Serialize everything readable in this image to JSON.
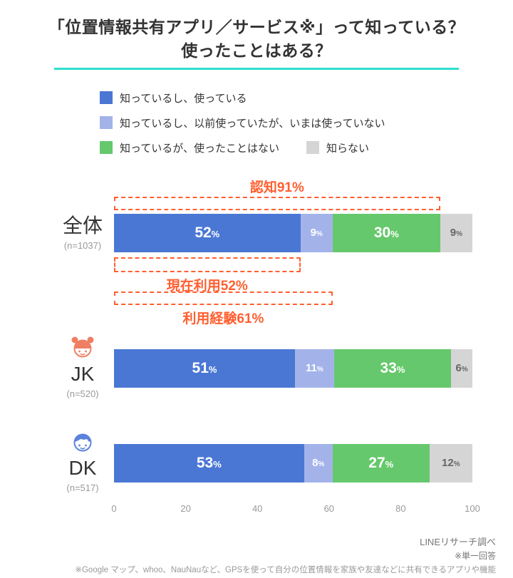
{
  "title": {
    "line1": "「位置情報共有アプリ／サービス※」って知っている？",
    "line2": "使ったことはある？"
  },
  "colors": {
    "accent_line": "#2FDFCE",
    "blue": "#4A77D4",
    "periwinkle": "#A3B3EA",
    "green": "#66C86C",
    "gray": "#D5D5D5",
    "annotation": "#FF5F30",
    "jk_icon": "#EF7F63",
    "dk_icon": "#5C83DC"
  },
  "legend": [
    {
      "label": "知っているし、使っている",
      "color_key": "blue"
    },
    {
      "label": "知っているし、以前使っていたが、いまは使っていない",
      "color_key": "periwinkle"
    },
    {
      "label": "知っているが、使ったことはない",
      "color_key": "green"
    },
    {
      "label": "知らない",
      "color_key": "gray"
    }
  ],
  "chart_data": {
    "type": "bar",
    "orientation": "horizontal",
    "stacked": true,
    "categories": [
      "全体",
      "JK",
      "DK"
    ],
    "category_sublabels": [
      "(n=1037)",
      "(n=520)",
      "(n=517)"
    ],
    "series": [
      {
        "name": "知っているし、使っている",
        "color": "#4A77D4",
        "values": [
          52,
          51,
          53
        ]
      },
      {
        "name": "知っているし、以前使っていたが、いまは使っていない",
        "color": "#A3B3EA",
        "values": [
          9,
          11,
          8
        ]
      },
      {
        "name": "知っているが、使ったことはない",
        "color": "#66C86C",
        "values": [
          30,
          33,
          27
        ]
      },
      {
        "name": "知らない",
        "color": "#D5D5D5",
        "values": [
          9,
          6,
          12
        ]
      }
    ],
    "x_ticks": [
      0,
      20,
      40,
      60,
      80,
      100
    ],
    "xlim": [
      0,
      100
    ],
    "value_suffix": "%",
    "annotations": [
      {
        "label": "認知91%",
        "span": 91,
        "position": "above-bar-1"
      },
      {
        "label": "現在利用52%",
        "span": 52,
        "position": "below-bar-1"
      },
      {
        "label": "利用経験61%",
        "span": 61,
        "position": "below-bar-1"
      }
    ],
    "legend_position": "top-left",
    "grid": false
  },
  "footer": {
    "line1": "LINEリサーチ調べ",
    "line2": "※単一回答",
    "line3": "※Google マップ、whoo、NauNauなど、GPSを使って自分の位置情報を家族や友達などに共有できるアプリや機能"
  }
}
